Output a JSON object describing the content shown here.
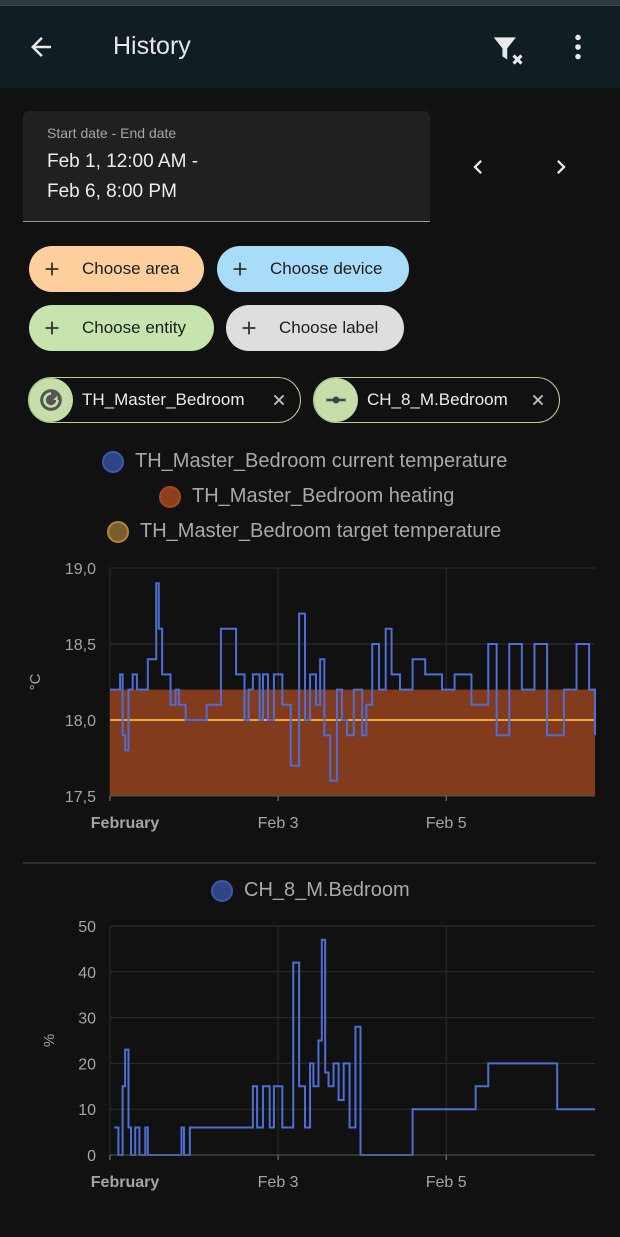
{
  "app": {
    "title": "History",
    "back_icon": "arrow-left-icon",
    "filter_clear_icon": "filter-remove-icon",
    "menu_icon": "dots-vertical-icon"
  },
  "date_range": {
    "label": "Start date - End date",
    "line1": "Feb 1, 12:00 AM -",
    "line2": "Feb 6, 8:00 PM"
  },
  "target_chips": [
    {
      "label": "Choose area",
      "color": "#ffcf9e"
    },
    {
      "label": "Choose device",
      "color": "#a9dcf9"
    },
    {
      "label": "Choose entity",
      "color": "#c7e4af"
    },
    {
      "label": "Choose label",
      "color": "#dedede"
    }
  ],
  "selected_entities": [
    {
      "label": "TH_Master_Bedroom",
      "icon": "thermostat-auto-icon"
    },
    {
      "label": "CH_8_M.Bedroom",
      "icon": "valve-icon"
    }
  ],
  "colors": {
    "current": "#4e6ed4",
    "heating": "#8c3f1d",
    "target": "#f5a533",
    "appbar": "#101e24"
  },
  "chart_data": [
    {
      "type": "line",
      "legend": [
        {
          "name": "TH_Master_Bedroom current temperature",
          "color": "#3b55a8"
        },
        {
          "name": "TH_Master_Bedroom heating",
          "color": "#a8461c"
        },
        {
          "name": "TH_Master_Bedroom target temperature",
          "color": "#b0853a"
        }
      ],
      "ylabel": "°C",
      "ylim": [
        17.5,
        19.0
      ],
      "yticks": [
        "19,0",
        "18,5",
        "18,0",
        "17,5"
      ],
      "xticks": [
        "February",
        "Feb 3",
        "Feb 5"
      ],
      "x_days": [
        1,
        3,
        5
      ],
      "x_range_days": [
        1,
        6.77
      ],
      "target_value": 18.0,
      "heating_on": true,
      "series": [
        {
          "name": "TH_Master_Bedroom current temperature",
          "t": [
            1.0,
            1.12,
            1.15,
            1.18,
            1.22,
            1.27,
            1.32,
            1.45,
            1.55,
            1.58,
            1.62,
            1.72,
            1.78,
            1.82,
            1.9,
            2.05,
            2.15,
            2.32,
            2.5,
            2.6,
            2.65,
            2.7,
            2.78,
            2.82,
            2.88,
            2.95,
            3.05,
            3.15,
            3.25,
            3.32,
            3.38,
            3.45,
            3.5,
            3.55,
            3.62,
            3.7,
            3.76,
            3.82,
            3.9,
            4.0,
            4.05,
            4.12,
            4.2,
            4.28,
            4.35,
            4.45,
            4.6,
            4.75,
            4.95,
            5.1,
            5.3,
            5.5,
            5.6,
            5.75,
            5.9,
            6.05,
            6.2,
            6.4,
            6.55,
            6.7,
            6.77
          ],
          "values": [
            18.2,
            18.3,
            17.9,
            17.8,
            18.2,
            18.3,
            18.2,
            18.4,
            18.9,
            18.6,
            18.3,
            18.1,
            18.2,
            18.1,
            18.0,
            18.0,
            18.1,
            18.6,
            18.3,
            18.0,
            18.2,
            18.3,
            18.0,
            18.3,
            18.0,
            18.3,
            18.1,
            17.7,
            18.7,
            18.0,
            18.3,
            18.1,
            18.4,
            17.9,
            17.6,
            18.2,
            18.0,
            17.9,
            18.2,
            17.9,
            18.1,
            18.5,
            18.2,
            18.6,
            18.3,
            18.2,
            18.4,
            18.3,
            18.2,
            18.3,
            18.1,
            18.5,
            17.9,
            18.5,
            18.2,
            18.5,
            17.9,
            18.2,
            18.5,
            18.2,
            17.9
          ]
        }
      ]
    },
    {
      "type": "line",
      "legend": [
        {
          "name": "CH_8_M.Bedroom",
          "color": "#3b55a8"
        }
      ],
      "ylabel": "%",
      "ylim": [
        0,
        50
      ],
      "yticks": [
        "50",
        "40",
        "30",
        "20",
        "10",
        "0"
      ],
      "xticks": [
        "February",
        "Feb 3",
        "Feb 5"
      ],
      "x_days": [
        1,
        3,
        5
      ],
      "x_range_days": [
        1,
        6.77
      ],
      "series": [
        {
          "name": "CH_8_M.Bedroom",
          "t": [
            1.05,
            1.1,
            1.15,
            1.18,
            1.22,
            1.25,
            1.3,
            1.35,
            1.42,
            1.45,
            1.5,
            1.85,
            1.88,
            1.95,
            2.05,
            2.12,
            2.2,
            2.28,
            2.35,
            2.42,
            2.5,
            2.6,
            2.7,
            2.75,
            2.82,
            2.9,
            2.95,
            3.05,
            3.12,
            3.18,
            3.25,
            3.32,
            3.38,
            3.42,
            3.48,
            3.52,
            3.56,
            3.6,
            3.66,
            3.72,
            3.78,
            3.85,
            3.92,
            3.98,
            4.05,
            4.1,
            4.2,
            4.45,
            4.6,
            4.7,
            4.8,
            4.88,
            4.95,
            5.05,
            5.15,
            5.25,
            5.35,
            5.5,
            5.6,
            5.7,
            5.82,
            5.92,
            6.02,
            6.12,
            6.22,
            6.32,
            6.42,
            6.52,
            6.62,
            6.72
          ],
          "values": [
            6,
            0,
            15,
            23,
            6,
            0,
            6,
            0,
            6,
            0,
            0,
            6,
            0,
            6,
            6,
            6,
            6,
            6,
            6,
            6,
            6,
            6,
            15,
            6,
            15,
            6,
            15,
            6,
            6,
            42,
            15,
            6,
            20,
            15,
            25,
            47,
            18,
            15,
            20,
            12,
            20,
            6,
            28,
            0,
            0,
            0,
            0,
            0,
            10,
            10,
            10,
            10,
            10,
            10,
            10,
            10,
            15,
            20,
            20,
            20,
            20,
            20,
            20,
            20,
            20,
            10,
            10,
            10,
            10,
            10
          ]
        }
      ]
    }
  ]
}
